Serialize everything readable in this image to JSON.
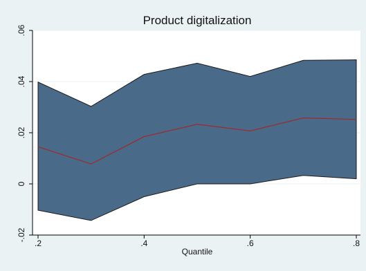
{
  "chart_data": {
    "type": "area",
    "title": "Product digitalization",
    "xlabel": "Quantile",
    "ylabel": "",
    "x": [
      0.2,
      0.3,
      0.4,
      0.5,
      0.6,
      0.7,
      0.8
    ],
    "xlim": [
      0.2,
      0.8
    ],
    "ylim": [
      -0.02,
      0.06
    ],
    "xticks": [
      0.2,
      0.4,
      0.6,
      0.8
    ],
    "xtick_labels": [
      ".2",
      ".4",
      ".6",
      ".8"
    ],
    "yticks": [
      -0.02,
      0,
      0.02,
      0.04,
      0.06
    ],
    "ytick_labels": [
      "-.02",
      "0",
      ".02",
      ".04",
      ".06"
    ],
    "grid": "horizontal",
    "series": [
      {
        "role": "estimate",
        "values": [
          0.0145,
          0.0078,
          0.0185,
          0.0233,
          0.0207,
          0.0258,
          0.0252
        ]
      },
      {
        "role": "ci_upper",
        "values": [
          0.0398,
          0.0303,
          0.0428,
          0.0472,
          0.042,
          0.0483,
          0.0485
        ]
      },
      {
        "role": "ci_lower",
        "values": [
          -0.0103,
          -0.0143,
          -0.005,
          0.0,
          0.0,
          0.0033,
          0.002
        ]
      }
    ],
    "colors": {
      "band": "#4a6a8a",
      "band_edge": "#1a1a1a",
      "line": "#a02828",
      "plot_bg": "#ffffff",
      "page_bg": "#eaf2f3",
      "grid": "#eaf2f3"
    }
  }
}
